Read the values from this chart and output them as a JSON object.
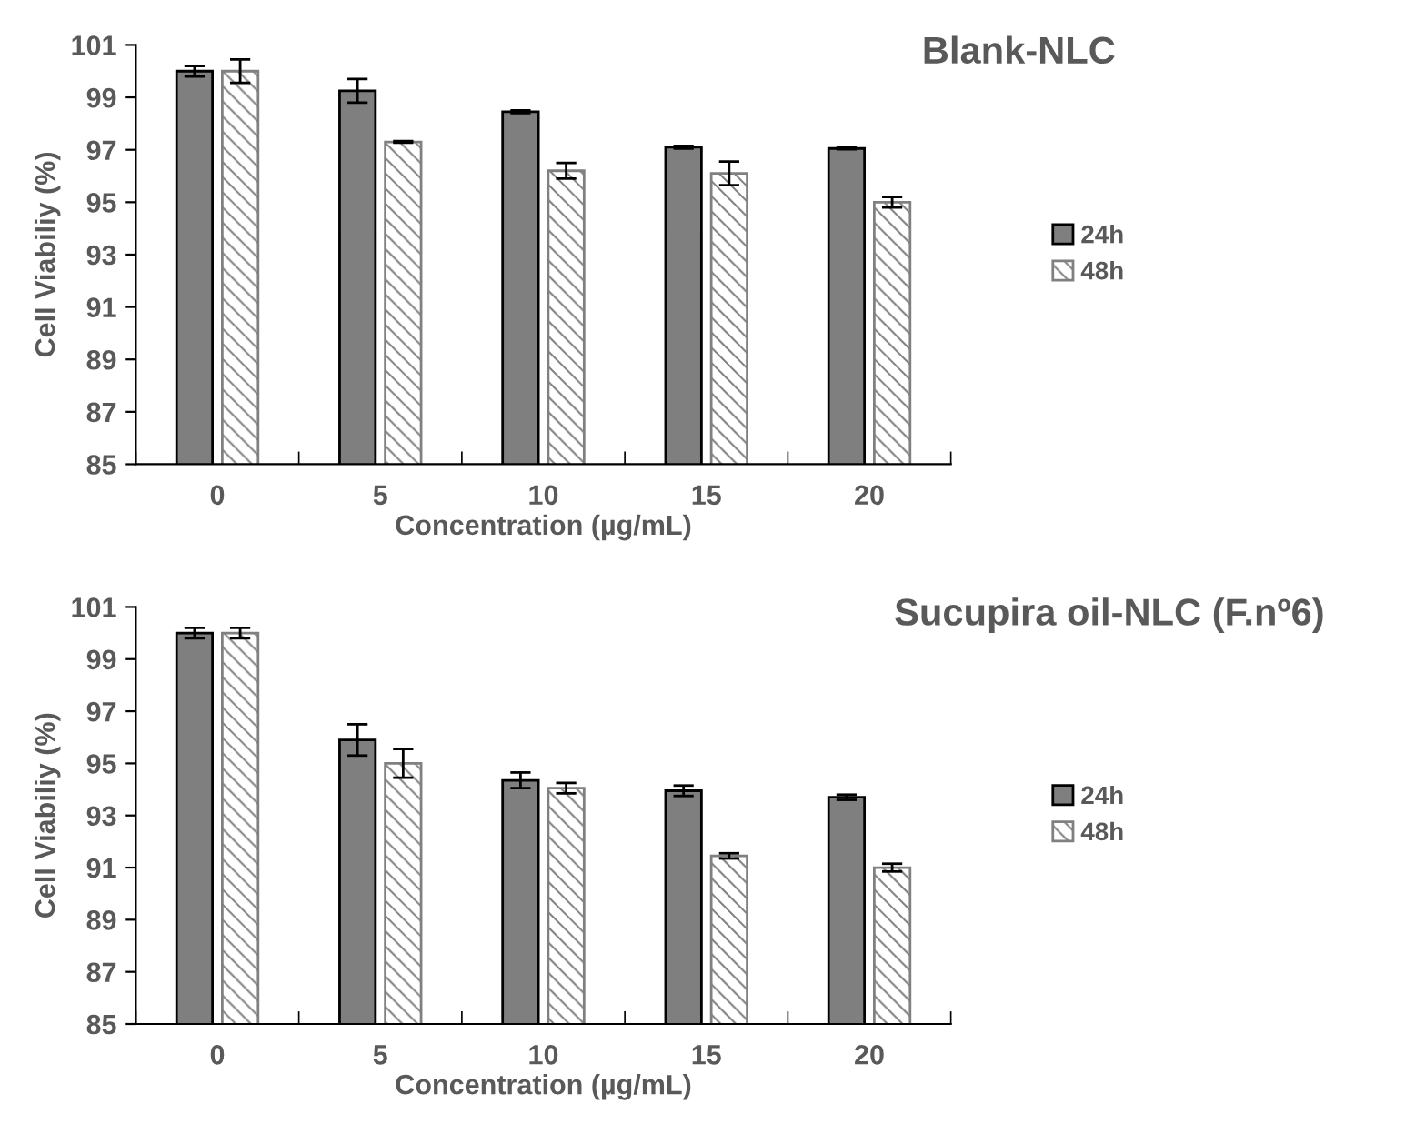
{
  "chart_data": [
    {
      "type": "bar",
      "title": "Blank-NLC",
      "xlabel": "Concentration (µg/mL)",
      "ylabel": "Cell Viabiliy (%)",
      "categories": [
        "0",
        "5",
        "10",
        "15",
        "20"
      ],
      "ylim": [
        85,
        101
      ],
      "yticks": [
        85,
        87,
        89,
        91,
        93,
        95,
        97,
        99,
        101
      ],
      "legend": "right",
      "grid": false,
      "series": [
        {
          "name": "24h",
          "color": "#7f7f7f",
          "values": [
            100,
            99.25,
            98.45,
            97.1,
            97.05
          ],
          "errors": [
            0.2,
            0.45,
            0.05,
            0.05,
            0.03
          ]
        },
        {
          "name": "48h",
          "color": "#808080",
          "values": [
            100,
            97.3,
            96.2,
            96.1,
            95.0
          ],
          "errors": [
            0.45,
            0.03,
            0.3,
            0.45,
            0.2
          ]
        }
      ]
    },
    {
      "type": "bar",
      "title": "Sucupira oil-NLC (F.nº6)",
      "xlabel": "Concentration (µg/mL)",
      "ylabel": "Cell Viabiliy (%)",
      "categories": [
        "0",
        "5",
        "10",
        "15",
        "20"
      ],
      "ylim": [
        85,
        101
      ],
      "yticks": [
        85,
        87,
        89,
        91,
        93,
        95,
        97,
        99,
        101
      ],
      "legend": "right",
      "grid": false,
      "series": [
        {
          "name": "24h",
          "color": "#7f7f7f",
          "values": [
            100,
            95.9,
            94.35,
            93.95,
            93.7
          ],
          "errors": [
            0.2,
            0.6,
            0.3,
            0.2,
            0.1
          ]
        },
        {
          "name": "48h",
          "color": "#808080",
          "values": [
            100,
            95.0,
            94.05,
            91.45,
            91.0
          ],
          "errors": [
            0.2,
            0.55,
            0.2,
            0.1,
            0.15
          ]
        }
      ]
    }
  ]
}
